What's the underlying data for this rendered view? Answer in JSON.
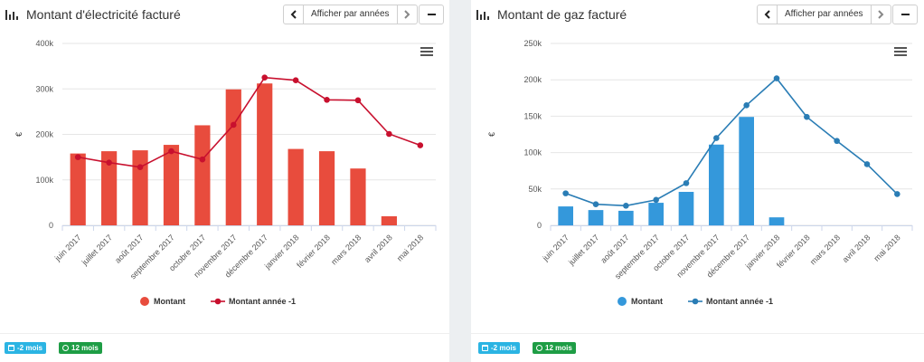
{
  "panels": [
    {
      "title": "Montant d'électricité facturé",
      "view_button": "Afficher par années",
      "prev_icon": "chevron-left-icon",
      "next_icon": "chevron-right-icon",
      "minimize_icon": "minus-icon",
      "menu_icon": "hamburger-menu-icon",
      "title_icon": "bar-chart-icon",
      "badges": [
        {
          "label": "-2 mois",
          "icon": "calendar-icon",
          "color": "#2bb4e3"
        },
        {
          "label": "12 mois",
          "icon": "clock-icon",
          "color": "#1e9d45"
        }
      ]
    },
    {
      "title": "Montant de gaz facturé",
      "view_button": "Afficher par années",
      "prev_icon": "chevron-left-icon",
      "next_icon": "chevron-right-icon",
      "minimize_icon": "minus-icon",
      "menu_icon": "hamburger-menu-icon",
      "title_icon": "bar-chart-icon",
      "badges": [
        {
          "label": "-2 mois",
          "icon": "calendar-icon",
          "color": "#2bb4e3"
        },
        {
          "label": "12 mois",
          "icon": "clock-icon",
          "color": "#1e9d45"
        }
      ]
    }
  ],
  "chart_data": [
    {
      "type": "bar",
      "title": "Montant d'électricité facturé",
      "ylabel": "€",
      "ylim": [
        0,
        400000
      ],
      "yticks": [
        0,
        100000,
        200000,
        300000,
        400000
      ],
      "ytick_labels": [
        "0",
        "100k",
        "200k",
        "300k",
        "400k"
      ],
      "grid": true,
      "legend_position": "bottom-center",
      "categories": [
        "juin 2017",
        "juillet 2017",
        "août 2017",
        "septembre 2017",
        "octobre 2017",
        "novembre 2017",
        "décembre 2017",
        "janvier 2018",
        "février 2018",
        "mars 2018",
        "avril 2018",
        "mai 2018"
      ],
      "series": [
        {
          "name": "Montant",
          "type": "bar",
          "color": "#e84c3d",
          "values": [
            158000,
            163000,
            165000,
            177000,
            220000,
            299000,
            312000,
            168000,
            163000,
            125000,
            20000,
            null
          ]
        },
        {
          "name": "Montant année -1",
          "type": "line",
          "color": "#c8102e",
          "values": [
            150000,
            138000,
            128000,
            163000,
            145000,
            221000,
            325000,
            319000,
            276000,
            275000,
            201000,
            176000
          ]
        }
      ]
    },
    {
      "type": "bar",
      "title": "Montant de gaz facturé",
      "ylabel": "€",
      "ylim": [
        0,
        250000
      ],
      "yticks": [
        0,
        50000,
        100000,
        150000,
        200000,
        250000
      ],
      "ytick_labels": [
        "0",
        "50k",
        "100k",
        "150k",
        "200k",
        "250k"
      ],
      "grid": true,
      "legend_position": "bottom-center",
      "categories": [
        "juin 2017",
        "juillet 2017",
        "août 2017",
        "septembre 2017",
        "octobre 2017",
        "novembre 2017",
        "décembre 2017",
        "janvier 2018",
        "février 2018",
        "mars 2018",
        "avril 2018",
        "mai 2018"
      ],
      "series": [
        {
          "name": "Montant",
          "type": "bar",
          "color": "#3498db",
          "values": [
            26000,
            21000,
            20000,
            31000,
            46000,
            111000,
            149000,
            11000,
            null,
            null,
            null,
            null
          ]
        },
        {
          "name": "Montant année -1",
          "type": "line",
          "color": "#2a7db5",
          "values": [
            44000,
            29000,
            27000,
            35000,
            58000,
            120000,
            165000,
            202000,
            149000,
            116000,
            84000,
            43000
          ]
        }
      ]
    }
  ]
}
